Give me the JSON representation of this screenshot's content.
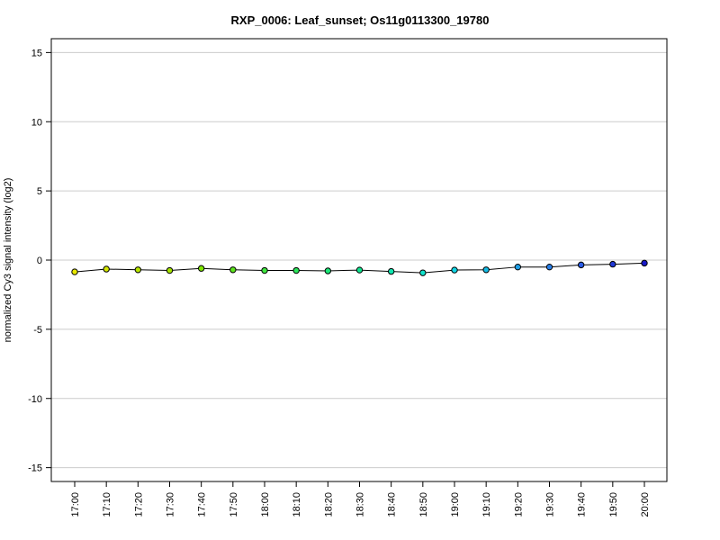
{
  "chart_data": {
    "type": "line",
    "title": "RXP_0006: Leaf_sunset; Os11g0113300_19780",
    "xlabel": "",
    "ylabel": "normalized Cy3 signal intensity (log2)",
    "ylim": [
      -16,
      16
    ],
    "yticks": [
      -15,
      -10,
      -5,
      0,
      5,
      10,
      15
    ],
    "grid": true,
    "categories": [
      "17:00",
      "17:10",
      "17:20",
      "17:30",
      "17:40",
      "17:50",
      "18:00",
      "18:10",
      "18:20",
      "18:30",
      "18:40",
      "18:50",
      "19:00",
      "19:10",
      "19:20",
      "19:30",
      "19:40",
      "19:50",
      "20:00"
    ],
    "series": [
      {
        "values": [
          -0.85,
          -0.65,
          -0.7,
          -0.75,
          -0.6,
          -0.7,
          -0.75,
          -0.75,
          -0.78,
          -0.72,
          -0.82,
          -0.92,
          -0.72,
          -0.7,
          -0.5,
          -0.5,
          -0.35,
          -0.3,
          -0.22
        ],
        "colors": [
          "#e8e800",
          "#d4e600",
          "#b8e600",
          "#a6e400",
          "#7ee600",
          "#5ee61e",
          "#3ee63e",
          "#2ae65a",
          "#1ae676",
          "#10e690",
          "#10e6b0",
          "#10e2cc",
          "#10d6e6",
          "#14bce6",
          "#1e9ee6",
          "#2a7ee6",
          "#2a5ce6",
          "#2038d6",
          "#1818c8"
        ]
      }
    ]
  }
}
